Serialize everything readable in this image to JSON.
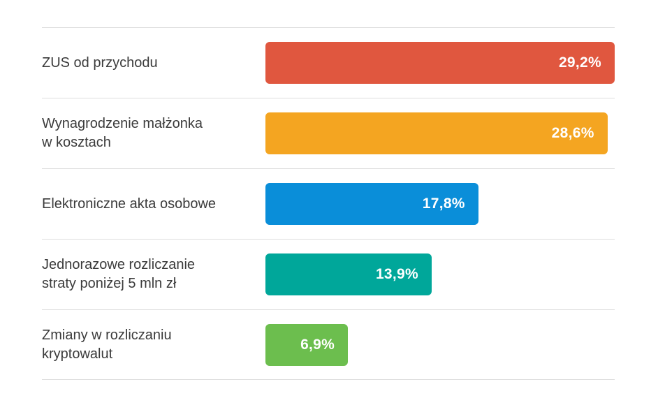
{
  "chart_data": {
    "type": "bar",
    "orientation": "horizontal",
    "title": "",
    "xlabel": "",
    "ylabel": "",
    "legend": false,
    "grid": false,
    "xlim": [
      0,
      29.2
    ],
    "categories": [
      "ZUS od przychodu",
      "Wynagrodzenie małżonka w kosztach",
      "Elektroniczne akta osobowe",
      "Jednorazowe rozliczanie straty poniżej 5 mln zł",
      "Zmiany w rozliczaniu kryptowalut"
    ],
    "values": [
      29.2,
      28.6,
      17.8,
      13.9,
      6.9
    ],
    "value_labels": [
      "29,2%",
      "28,6%",
      "17,8%",
      "13,9%",
      "6,9%"
    ],
    "bar_colors": [
      "#e0573f",
      "#f4a521",
      "#0a8ed9",
      "#00a79a",
      "#6cbe4e"
    ],
    "divider_color": "#dedede",
    "label_color": "#3b3b3b",
    "value_text_color": "#ffffff"
  },
  "rows": [
    {
      "label_lines": [
        "ZUS od przychodu"
      ],
      "value_label": "29,2%"
    },
    {
      "label_lines": [
        "Wynagrodzenie małżonka",
        "w kosztach"
      ],
      "value_label": "28,6%"
    },
    {
      "label_lines": [
        "Elektroniczne akta osobowe"
      ],
      "value_label": "17,8%"
    },
    {
      "label_lines": [
        "Jednorazowe rozliczanie",
        "straty poniżej 5 mln zł"
      ],
      "value_label": "13,9%"
    },
    {
      "label_lines": [
        "Zmiany w rozliczaniu",
        "kryptowalut"
      ],
      "value_label": "6,9%"
    }
  ]
}
